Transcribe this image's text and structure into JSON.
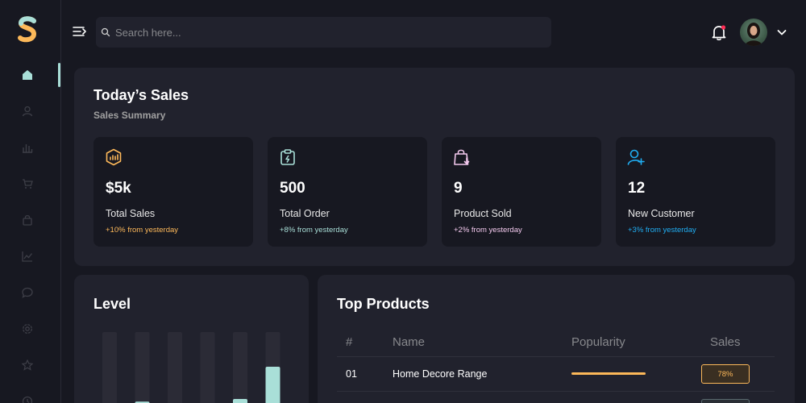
{
  "header": {
    "search_placeholder": "Search here..."
  },
  "sidebar": {
    "items": [
      {
        "name": "home",
        "icon": "home-icon",
        "active": true
      },
      {
        "name": "profile",
        "icon": "user-icon"
      },
      {
        "name": "leaderboard",
        "icon": "bar-chart-icon"
      },
      {
        "name": "order",
        "icon": "cart-icon"
      },
      {
        "name": "product",
        "icon": "bag-icon"
      },
      {
        "name": "sales-report",
        "icon": "line-chart-icon"
      },
      {
        "name": "messages",
        "icon": "chat-icon"
      },
      {
        "name": "settings",
        "icon": "gear-icon"
      },
      {
        "name": "favourite",
        "icon": "star-icon"
      },
      {
        "name": "history",
        "icon": "clock-icon"
      }
    ]
  },
  "sales": {
    "title": "Today’s Sales",
    "subtitle": "Sales Summary",
    "cards": [
      {
        "value": "$5k",
        "label": "Total Sales",
        "change": "+10% from yesterday",
        "color": "#feb95a",
        "icon": "chart-box-icon"
      },
      {
        "value": "500",
        "label": "Total Order",
        "change": "+8% from yesterday",
        "color": "#a9dfd8",
        "icon": "clipboard-icon"
      },
      {
        "value": "9",
        "label": "Product Sold",
        "change": "+2% from yesterday",
        "color": "#f2c8ed",
        "icon": "shopping-bag-icon"
      },
      {
        "value": "12",
        "label": "New Customer",
        "change": "+3% from yesterday",
        "color": "#20aef3",
        "icon": "add-user-icon"
      }
    ]
  },
  "level": {
    "title": "Level",
    "bars": [
      0.05,
      0.08,
      0.0,
      0.0,
      0.1,
      0.35
    ]
  },
  "products": {
    "title": "Top Products",
    "columns": [
      "#",
      "Name",
      "Popularity",
      "Sales"
    ],
    "rows": [
      {
        "rank": "01",
        "name": "Home Decore Range",
        "popularity": 0.46,
        "sales": "78%",
        "color": "#fcb859"
      }
    ]
  }
}
